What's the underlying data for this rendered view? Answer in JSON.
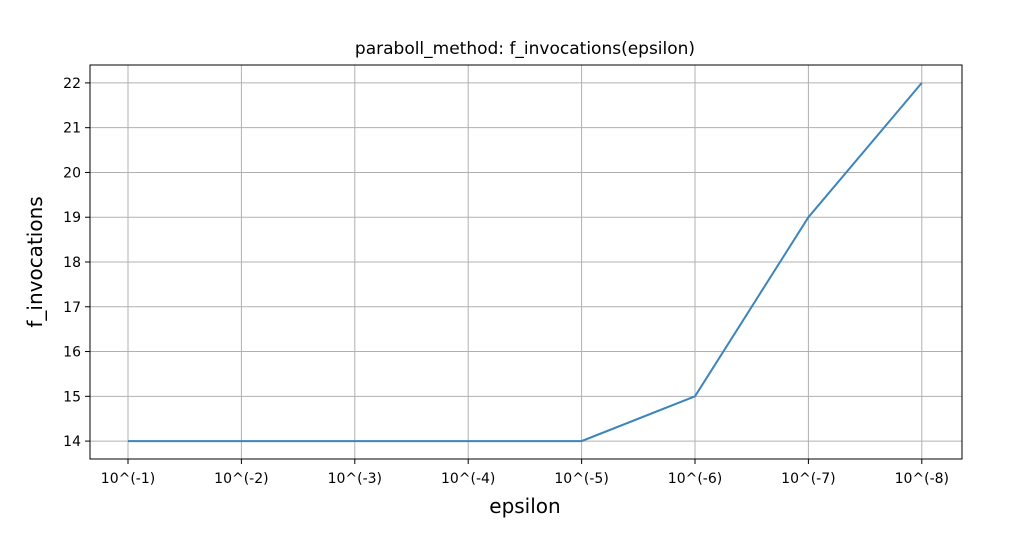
{
  "chart_data": {
    "type": "line",
    "title": "paraboll_method: f_invocations(epsilon)",
    "xlabel": "epsilon",
    "ylabel": "f_invocations",
    "categories": [
      "10^(-1)",
      "10^(-2)",
      "10^(-3)",
      "10^(-4)",
      "10^(-5)",
      "10^(-6)",
      "10^(-7)",
      "10^(-8)"
    ],
    "series": [
      {
        "values": [
          14,
          14,
          14,
          14,
          14,
          15,
          19,
          22
        ],
        "color": "#3b84bd"
      }
    ],
    "ylim": [
      13.6,
      22.4
    ],
    "yticks": [
      14,
      15,
      16,
      17,
      18,
      19,
      20,
      21,
      22
    ],
    "grid": true,
    "legend": "none"
  }
}
